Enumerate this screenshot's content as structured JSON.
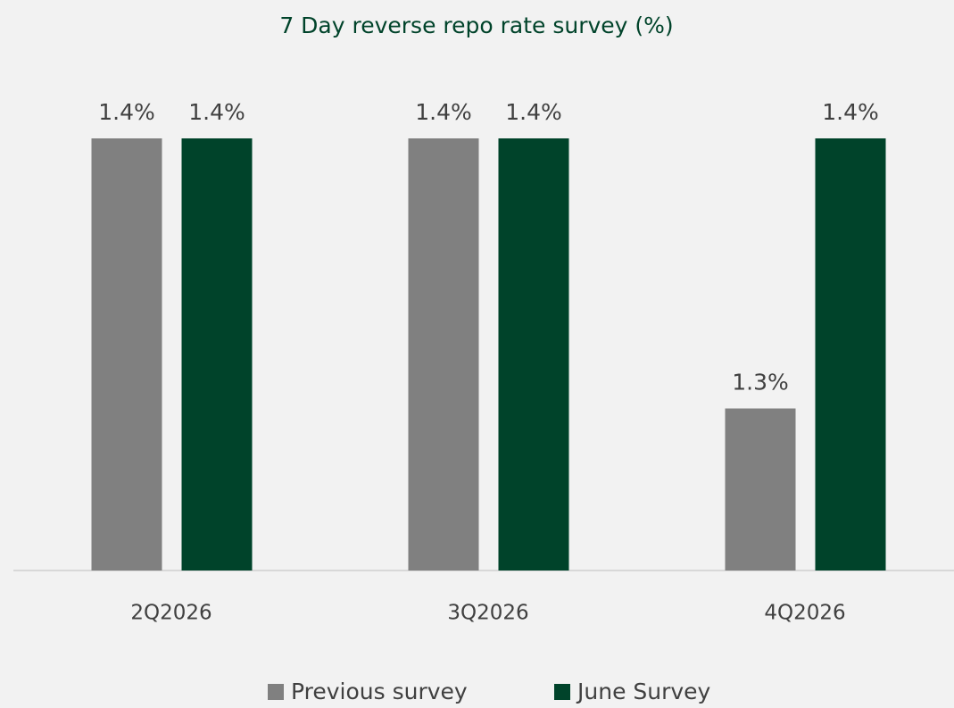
{
  "chart_data": {
    "type": "bar",
    "title": "7 Day reverse repo rate survey (%)",
    "categories": [
      "2Q2026",
      "3Q2026",
      "4Q2026"
    ],
    "series": [
      {
        "name": "Previous survey",
        "color": "#808080",
        "values": [
          1.4,
          1.4,
          1.3
        ],
        "value_labels": [
          "1.4%",
          "1.4%",
          "1.3%"
        ]
      },
      {
        "name": "June Survey",
        "color": "#00432a",
        "values": [
          1.4,
          1.4,
          1.4
        ],
        "value_labels": [
          "1.4%",
          "1.4%",
          "1.4%"
        ]
      }
    ],
    "ylim": [
      1.24,
      1.4
    ],
    "legend": "bottom"
  }
}
